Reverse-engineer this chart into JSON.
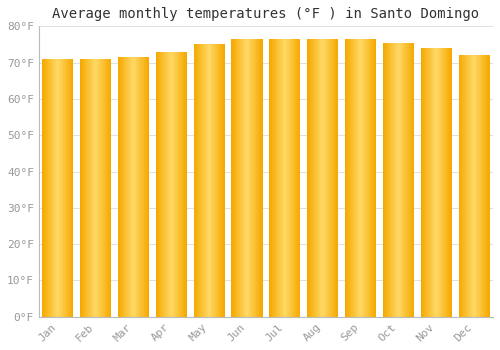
{
  "title": "Average monthly temperatures (°F ) in Santo Domingo",
  "months": [
    "Jan",
    "Feb",
    "Mar",
    "Apr",
    "May",
    "Jun",
    "Jul",
    "Aug",
    "Sep",
    "Oct",
    "Nov",
    "Dec"
  ],
  "values": [
    71.0,
    71.0,
    71.5,
    73.0,
    75.0,
    76.5,
    76.5,
    76.5,
    76.5,
    75.5,
    74.0,
    72.0
  ],
  "bar_color_center": "#FFD966",
  "bar_color_edge": "#F5A800",
  "ylim": [
    0,
    80
  ],
  "yticks": [
    0,
    10,
    20,
    30,
    40,
    50,
    60,
    70,
    80
  ],
  "ytick_labels": [
    "0°F",
    "10°F",
    "20°F",
    "30°F",
    "40°F",
    "50°F",
    "60°F",
    "70°F",
    "80°F"
  ],
  "bg_color": "#FFFFFF",
  "grid_color": "#E0E0E0",
  "title_fontsize": 10,
  "tick_fontsize": 8,
  "font_family": "monospace"
}
